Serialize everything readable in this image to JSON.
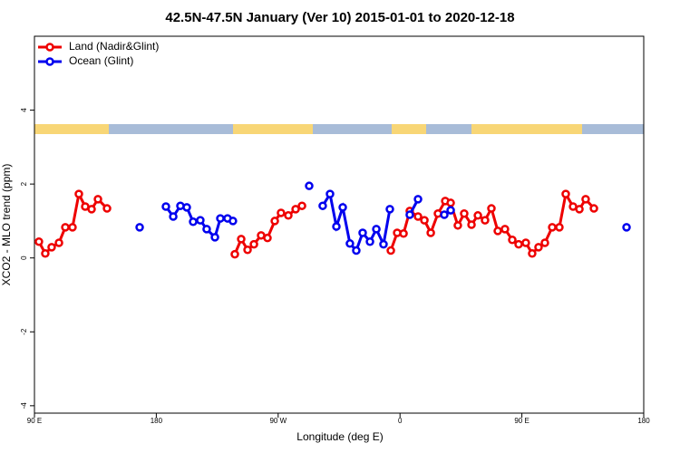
{
  "chart_data": {
    "type": "line",
    "title": "42.5N-47.5N January (Ver 10)   2015-01-01 to 2020-12-18",
    "x_label": "Longitude (deg E)",
    "y_label": "XCO2 - MLO trend (ppm)",
    "xlim": [
      90,
      540
    ],
    "ylim": [
      -4.2,
      6
    ],
    "xticks": [
      {
        "value": 90,
        "label": "90 E"
      },
      180,
      {
        "value": 270,
        "label": "90 W"
      },
      {
        "value": 360,
        "label": "0"
      },
      {
        "value": 450,
        "label": "90 E"
      },
      {
        "value": 540,
        "label": "180"
      }
    ],
    "yticks": [
      -4,
      -2,
      0,
      2,
      4
    ],
    "legend": "top-left",
    "series": [
      {
        "name": "Land (Nadir&Glint)",
        "color": "#ee0000",
        "x": [
          93.3,
          98.0,
          102.7,
          108.1,
          112.8,
          118.1,
          122.8,
          127.5,
          132.2,
          136.9,
          143.6,
          null,
          238.0,
          242.7,
          247.4,
          252.1,
          257.4,
          262.1,
          267.5,
          272.1,
          277.5,
          282.9,
          287.6,
          null,
          353.2,
          357.9,
          362.6,
          367.2,
          373.3,
          378.0,
          382.7,
          388.0,
          393.4,
          397.4,
          402.7,
          407.4,
          412.8,
          417.5,
          422.8,
          427.5,
          432.2,
          437.5,
          442.9,
          447.6,
          452.9,
          457.6,
          462.3,
          467.0,
          472.4,
          477.7,
          482.4,
          487.8,
          492.5,
          497.1,
          503.2
        ],
        "values": [
          0.44,
          0.12,
          0.29,
          0.41,
          0.83,
          0.83,
          1.73,
          1.39,
          1.32,
          1.59,
          1.34,
          null,
          0.1,
          0.51,
          0.22,
          0.37,
          0.61,
          0.54,
          1.0,
          1.22,
          1.15,
          1.32,
          1.41,
          null,
          0.2,
          0.68,
          0.66,
          1.27,
          1.12,
          1.02,
          0.68,
          1.2,
          1.54,
          1.49,
          0.88,
          1.2,
          0.9,
          1.15,
          1.02,
          1.34,
          0.73,
          0.78,
          0.49,
          0.37,
          0.41,
          0.12,
          0.29,
          0.41,
          0.83,
          0.83,
          1.73,
          1.39,
          1.32,
          1.59,
          1.34
        ]
      },
      {
        "name": "Ocean (Glint)",
        "color": "#0000ee",
        "x": [
          167.7,
          null,
          187.1,
          192.5,
          197.8,
          202.5,
          207.2,
          212.5,
          217.2,
          223.3,
          227.3,
          232.6,
          236.6,
          null,
          292.9,
          null,
          302.9,
          308.3,
          313.0,
          317.7,
          323.0,
          327.7,
          332.4,
          337.8,
          342.5,
          347.8,
          352.5,
          null,
          367.2,
          373.3,
          null,
          392.7,
          397.4,
          null,
          527.3
        ],
        "values": [
          0.83,
          null,
          1.39,
          1.12,
          1.41,
          1.37,
          0.98,
          1.02,
          0.78,
          0.56,
          1.07,
          1.07,
          1.0,
          null,
          1.95,
          null,
          1.41,
          1.73,
          0.85,
          1.37,
          0.39,
          0.2,
          0.68,
          0.44,
          0.78,
          0.37,
          1.32,
          null,
          1.17,
          1.59,
          null,
          1.17,
          1.29,
          null,
          0.83
        ]
      }
    ]
  }
}
